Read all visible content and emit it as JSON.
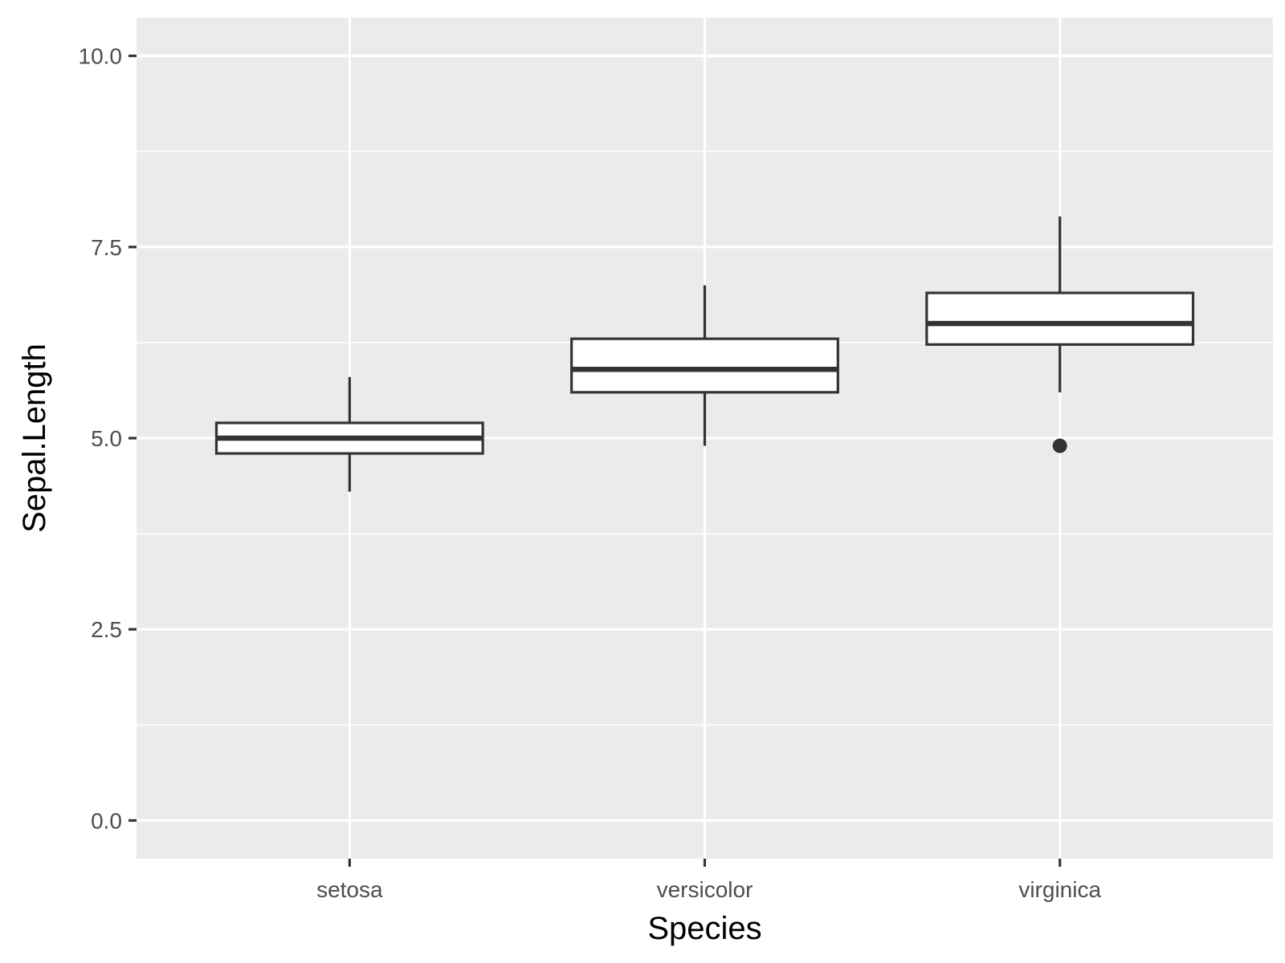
{
  "chart_data": {
    "type": "boxplot",
    "title": "",
    "xlabel": "Species",
    "ylabel": "Sepal.Length",
    "categories": [
      "setosa",
      "versicolor",
      "virginica"
    ],
    "boxes": [
      {
        "category": "setosa",
        "whisker_low": 4.3,
        "q1": 4.8,
        "median": 5.0,
        "q3": 5.2,
        "whisker_high": 5.8,
        "outliers": []
      },
      {
        "category": "versicolor",
        "whisker_low": 4.9,
        "q1": 5.6,
        "median": 5.9,
        "q3": 6.3,
        "whisker_high": 7.0,
        "outliers": []
      },
      {
        "category": "virginica",
        "whisker_low": 5.6,
        "q1": 6.225,
        "median": 6.5,
        "q3": 6.9,
        "whisker_high": 7.9,
        "outliers": [
          4.9
        ]
      }
    ],
    "yticks": [
      0.0,
      2.5,
      5.0,
      7.5,
      10.0
    ],
    "ytick_labels": [
      "0.0",
      "2.5",
      "5.0",
      "7.5",
      "10.0"
    ],
    "ylim": [
      -0.5,
      10.5
    ],
    "grid": true,
    "legend": "none",
    "colors": {
      "panel_background": "#ebebeb",
      "grid": "#ffffff",
      "box_fill": "#ffffff",
      "box_stroke": "#333333",
      "tick": "#333333"
    }
  }
}
